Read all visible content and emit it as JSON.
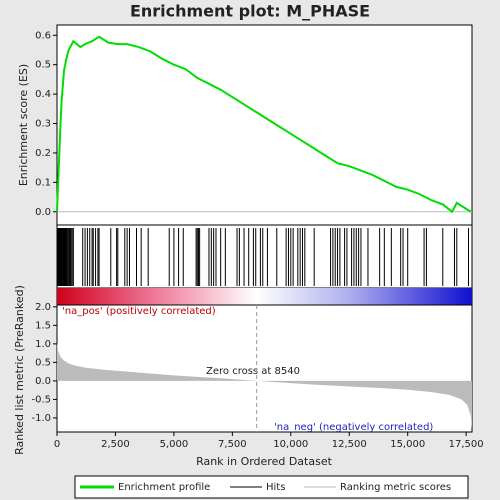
{
  "chart_data": {
    "type": "enrichment",
    "title": "Enrichment plot: M_PHASE",
    "xlabel": "Rank in Ordered Dataset",
    "ylabel": "Enrichment score (ES)",
    "y2label": "Ranked list metric (PreRanked)",
    "xlim": [
      0,
      17750
    ],
    "xticks": [
      0,
      {
        "value": 2500,
        "label": "2,500"
      },
      {
        "value": 5000,
        "label": "5,000"
      },
      {
        "value": 7500,
        "label": "7,500"
      },
      {
        "value": 10000,
        "label": "10,000"
      },
      {
        "value": 12500,
        "label": "12,500"
      },
      {
        "value": 15000,
        "label": "15,000"
      },
      {
        "value": 17500,
        "label": "17,500"
      }
    ],
    "ylim": [
      -0.045,
      0.635
    ],
    "yticks": [
      {
        "value": 0,
        "label": "0.0"
      },
      0.1,
      0.2,
      0.3,
      0.4,
      0.5,
      0.6
    ],
    "y2lim": [
      -1.38,
      2.05
    ],
    "y2ticks": [
      {
        "value": 2,
        "label": "2.0"
      },
      1.5,
      {
        "value": 1,
        "label": "1.0"
      },
      0.5,
      {
        "value": 0,
        "label": "0.0"
      },
      -0.5,
      {
        "value": -1,
        "label": "-1.0"
      }
    ],
    "series": [
      {
        "name": "Enrichment profile",
        "color": "#00dd00",
        "x": [
          0,
          50,
          100,
          150,
          200,
          250,
          300,
          400,
          500,
          700,
          1000,
          1200,
          1500,
          1800,
          2200,
          2600,
          3000,
          3500,
          4000,
          4500,
          5000,
          5500,
          6000,
          6500,
          7000,
          7500,
          8000,
          8500,
          9000,
          9500,
          10000,
          10500,
          11000,
          11500,
          12000,
          12500,
          13000,
          13500,
          14000,
          14500,
          15000,
          15500,
          16000,
          16500,
          16900,
          17100,
          17400,
          17700
        ],
        "values": [
          0,
          0.1,
          0.2,
          0.3,
          0.38,
          0.43,
          0.48,
          0.52,
          0.55,
          0.58,
          0.56,
          0.57,
          0.58,
          0.595,
          0.575,
          0.57,
          0.57,
          0.56,
          0.545,
          0.52,
          0.5,
          0.485,
          0.455,
          0.435,
          0.415,
          0.39,
          0.365,
          0.34,
          0.315,
          0.29,
          0.265,
          0.24,
          0.215,
          0.19,
          0.165,
          0.155,
          0.14,
          0.125,
          0.105,
          0.085,
          0.075,
          0.06,
          0.04,
          0.025,
          0,
          0.03,
          0.015,
          0
        ]
      },
      {
        "name": "Hits",
        "color": "#000000",
        "x": [
          20,
          40,
          60,
          80,
          100,
          120,
          150,
          170,
          200,
          230,
          260,
          290,
          320,
          350,
          380,
          410,
          440,
          480,
          520,
          560,
          600,
          650,
          700,
          1100,
          1200,
          1300,
          1400,
          1500,
          1550,
          1650,
          1750,
          1800,
          2300,
          2550,
          2600,
          2900,
          3000,
          3100,
          3400,
          3600,
          3900,
          4800,
          5000,
          5200,
          5400,
          5950,
          6000,
          6050,
          6100,
          6500,
          6600,
          6700,
          6800,
          7000,
          7200,
          7700,
          7800,
          8000,
          8200,
          8400,
          8500,
          8700,
          8800,
          9000,
          9400,
          9800,
          9900,
          10000,
          10100,
          10300,
          10400,
          10500,
          10600,
          11000,
          11700,
          11800,
          11900,
          12000,
          12100,
          12300,
          12400,
          12600,
          12700,
          12800,
          12900,
          13000,
          13300,
          13800,
          14000,
          14300,
          14700,
          14800,
          15000,
          15700,
          15800,
          16500,
          17000,
          17100,
          17600
        ]
      },
      {
        "name": "Ranking metric scores",
        "color": "#bbbbbb",
        "axis": "y2",
        "x": [
          0,
          50,
          150,
          300,
          500,
          800,
          1200,
          2000,
          3000,
          4000,
          5000,
          6000,
          7000,
          8540,
          10000,
          11000,
          12500,
          14000,
          15000,
          16000,
          16800,
          17300,
          17550,
          17700,
          17750
        ],
        "values": [
          1.05,
          0.8,
          0.65,
          0.55,
          0.47,
          0.41,
          0.36,
          0.3,
          0.25,
          0.2,
          0.15,
          0.11,
          0.07,
          0,
          -0.06,
          -0.1,
          -0.15,
          -0.2,
          -0.24,
          -0.3,
          -0.38,
          -0.5,
          -0.65,
          -0.95,
          -1.3
        ]
      }
    ],
    "zero_cross": 8540,
    "annotations": [
      "'na_pos' (positively correlated)",
      "Zero cross at 8540",
      "'na_neg' (negatively correlated)"
    ]
  }
}
